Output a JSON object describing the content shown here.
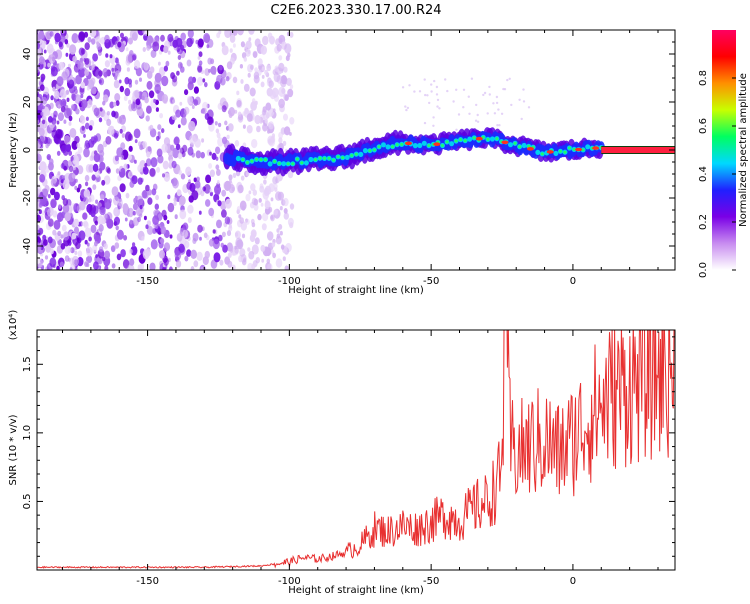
{
  "title": "C2E6.2023.330.17.00.R24",
  "chart_data": [
    {
      "type": "heatmap",
      "xlabel": "Height of straight line (km)",
      "ylabel": "Frequency (Hz)",
      "xlim": [
        -189,
        36
      ],
      "ylim": [
        -50,
        50
      ],
      "xticks": [
        -150,
        -100,
        -50,
        0
      ],
      "yticks": [
        -40,
        -20,
        0,
        20,
        40
      ],
      "xtick_labels": [
        "-150",
        "-100",
        "-50",
        "0"
      ],
      "ytick_labels": [
        "-40",
        "-20",
        "0",
        "20",
        "40"
      ],
      "colorbar": {
        "label": "Normalized spectral amplitude",
        "range": [
          0,
          1
        ],
        "ticks": [
          0.0,
          0.2,
          0.4,
          0.6,
          0.8
        ],
        "tick_labels": [
          "0.0",
          "0.2",
          "0.4",
          "0.6",
          "0.8"
        ],
        "colors": [
          "#ffffff",
          "#c88cf0",
          "#7a00e6",
          "#2020ff",
          "#00d8ff",
          "#00ff60",
          "#c8ff00",
          "#ff9000",
          "#ff0000",
          "#ff0060"
        ]
      },
      "band_centerline": [
        {
          "x": -122,
          "y": -3
        },
        {
          "x": -110,
          "y": -5
        },
        {
          "x": -100,
          "y": -5
        },
        {
          "x": -90,
          "y": -4
        },
        {
          "x": -80,
          "y": -3
        },
        {
          "x": -70,
          "y": 1
        },
        {
          "x": -60,
          "y": 3
        },
        {
          "x": -50,
          "y": 2
        },
        {
          "x": -40,
          "y": 4
        },
        {
          "x": -30,
          "y": 5
        },
        {
          "x": -20,
          "y": 2
        },
        {
          "x": -10,
          "y": -1
        },
        {
          "x": 0,
          "y": 0
        },
        {
          "x": 10,
          "y": 1
        },
        {
          "x": 20,
          "y": 0
        },
        {
          "x": 36,
          "y": 0
        }
      ]
    },
    {
      "type": "line",
      "xlabel": "Height of straight line (km)",
      "ylabel": "SNR (10 * v/v)",
      "scale_label": "(x10⁴)",
      "xlim": [
        -189,
        36
      ],
      "ylim": [
        0,
        1.75
      ],
      "xticks": [
        -150,
        -100,
        -50,
        0
      ],
      "yticks": [
        0.5,
        1.0,
        1.5
      ],
      "xtick_labels": [
        "-150",
        "-100",
        "-50",
        "0"
      ],
      "ytick_labels": [
        "0.5",
        "1.0",
        "1.5"
      ],
      "series": [
        {
          "color": "#e83030",
          "x": [
            -189,
            -170,
            -150,
            -130,
            -110,
            -100,
            -95,
            -90,
            -85,
            -80,
            -75,
            -70,
            -65,
            -60,
            -55,
            -50,
            -45,
            -40,
            -35,
            -30,
            -25,
            -24,
            -22,
            -20,
            -15,
            -10,
            -5,
            0,
            5,
            10,
            15,
            20,
            25,
            30,
            36
          ],
          "y": [
            0.02,
            0.02,
            0.02,
            0.02,
            0.03,
            0.06,
            0.09,
            0.08,
            0.1,
            0.13,
            0.18,
            0.3,
            0.28,
            0.32,
            0.3,
            0.35,
            0.4,
            0.36,
            0.45,
            0.5,
            0.7,
            1.75,
            0.9,
            0.85,
            0.9,
            0.95,
            0.85,
            0.95,
            1.1,
            1.2,
            1.3,
            1.35,
            1.4,
            1.45,
            1.5
          ]
        }
      ]
    }
  ]
}
